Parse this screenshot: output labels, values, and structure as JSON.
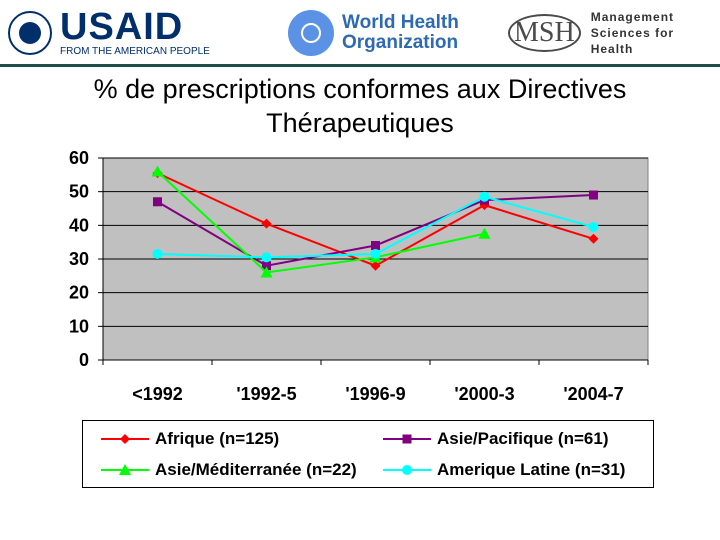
{
  "header": {
    "usaid": {
      "name": "USAID",
      "tagline": "FROM THE AMERICAN PEOPLE"
    },
    "who": {
      "line1": "World Health",
      "line2": "Organization"
    },
    "msh": {
      "mark": "MSH",
      "line1": "Management",
      "line2": "Sciences for Health"
    },
    "rule_color": "#1f4e4a"
  },
  "chart_data": {
    "type": "line",
    "title": "% de prescriptions conformes aux Directives Thérapeutiques",
    "xlabel": "",
    "ylabel": "",
    "categories": [
      "<1992",
      "'1992-5",
      "'1996-9",
      "'2000-3",
      "'2004-7"
    ],
    "ylim": [
      0,
      60
    ],
    "yticks": [
      0,
      10,
      20,
      30,
      40,
      50,
      60
    ],
    "grid": "horizontal",
    "plot_background": "#c0c0c0",
    "legend_position": "bottom",
    "series": [
      {
        "name": "Afrique (n=125)",
        "color": "#ff0000",
        "marker": "diamond",
        "values": [
          55.5,
          40.5,
          28,
          46,
          36
        ]
      },
      {
        "name": "Asie/Pacifique (n=61)",
        "color": "#800080",
        "marker": "square",
        "values": [
          47,
          28,
          34,
          47.5,
          49
        ]
      },
      {
        "name": "Asie/Méditerranée (n=22)",
        "color": "#00ff00",
        "marker": "triangle",
        "values": [
          56,
          26,
          30.5,
          37.5,
          null
        ]
      },
      {
        "name": "Amerique Latine (n=31)",
        "color": "#00ffff",
        "marker": "circle",
        "values": [
          31.5,
          30.5,
          31.5,
          48.5,
          39.5
        ]
      }
    ]
  }
}
